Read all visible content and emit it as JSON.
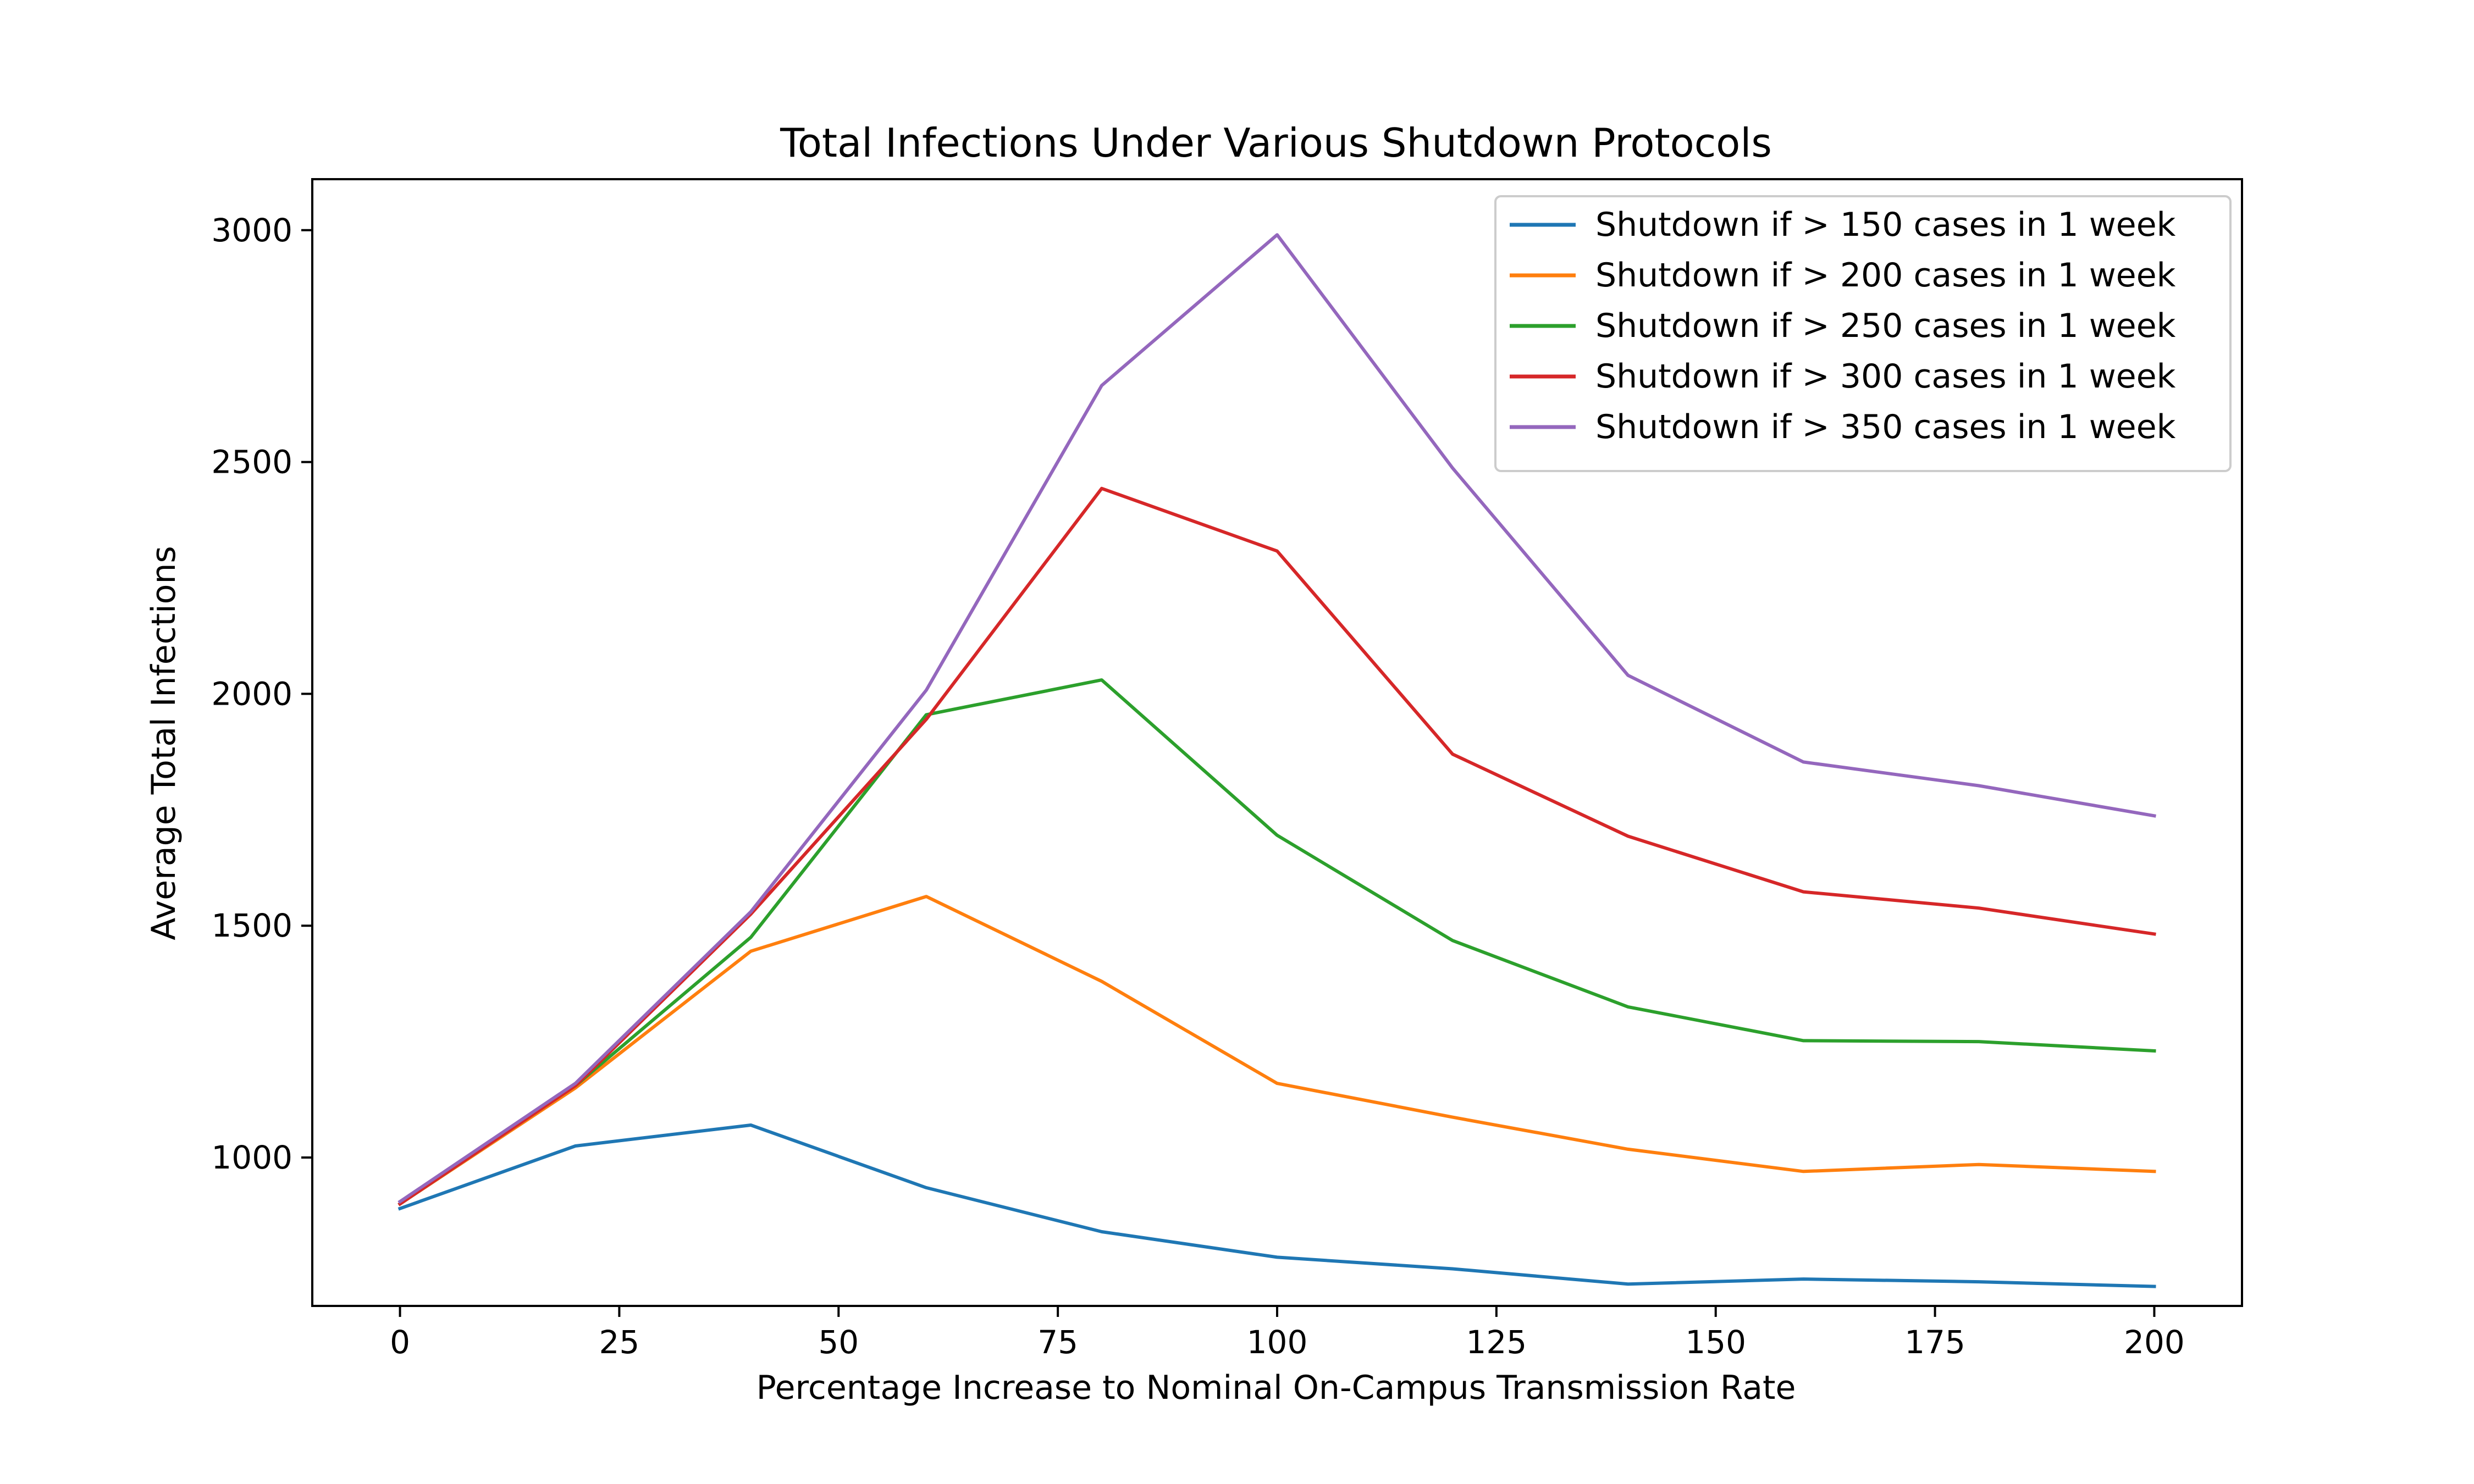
{
  "chart_data": {
    "type": "line",
    "title": "Total Infections Under Various Shutdown Protocols",
    "xlabel": "Percentage Increase to Nominal On-Campus Transmission Rate",
    "ylabel": "Average Total Infections",
    "xlim": [
      -10,
      210
    ],
    "ylim": [
      680,
      3110
    ],
    "xticks": [
      0,
      25,
      50,
      75,
      100,
      125,
      150,
      175,
      200
    ],
    "yticks": [
      1000,
      1500,
      2000,
      2500,
      3000
    ],
    "xtick_labels": [
      "0",
      "25",
      "50",
      "75",
      "100",
      "125",
      "150",
      "175",
      "200"
    ],
    "ytick_labels": [
      "1000",
      "1500",
      "2000",
      "2500",
      "3000"
    ],
    "grid": false,
    "legend_position": "upper right",
    "x": [
      0,
      20,
      40,
      60,
      80,
      100,
      120,
      140,
      160,
      180,
      200
    ],
    "series": [
      {
        "name": "Shutdown if > 150 cases in 1 week",
        "color": "#1f77b4",
        "values": [
          890,
          1025,
          1070,
          935,
          840,
          785,
          760,
          727,
          738,
          732,
          722
        ]
      },
      {
        "name": "Shutdown if > 200 cases in 1 week",
        "color": "#ff7f0e",
        "values": [
          900,
          1150,
          1445,
          1563,
          1380,
          1160,
          1087,
          1018,
          970,
          985,
          970
        ]
      },
      {
        "name": "Shutdown if > 250 cases in 1 week",
        "color": "#2ca02c",
        "values": [
          900,
          1155,
          1475,
          1955,
          2030,
          1695,
          1468,
          1325,
          1252,
          1250,
          1230
        ]
      },
      {
        "name": "Shutdown if > 300 cases in 1 week",
        "color": "#d62728",
        "values": [
          900,
          1155,
          1525,
          1945,
          2443,
          2308,
          1870,
          1693,
          1573,
          1538,
          1482
        ]
      },
      {
        "name": "Shutdown if > 350 cases in 1 week",
        "color": "#9467bd",
        "values": [
          905,
          1160,
          1530,
          2008,
          2665,
          2990,
          2487,
          2040,
          1853,
          1802,
          1737
        ]
      }
    ]
  }
}
